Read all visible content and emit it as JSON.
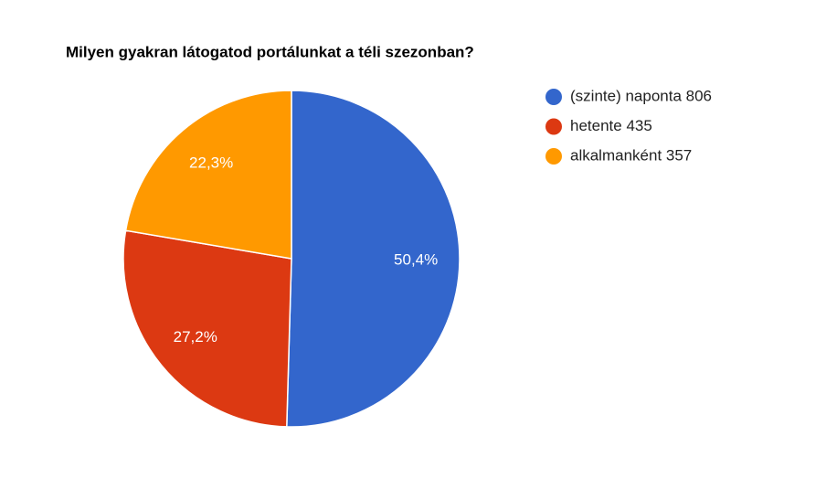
{
  "chart_data": {
    "type": "pie",
    "title": "Milyen gyakran látogatod portálunkat a téli szezonban?",
    "categories": [
      "(szinte) naponta 806",
      "hetente 435",
      "alkalmanként 357"
    ],
    "values": [
      50.4,
      27.2,
      22.3
    ],
    "value_labels": [
      "50,4%",
      "27,2%",
      "22,3%"
    ],
    "colors": [
      "#3366cc",
      "#dc3912",
      "#ff9900"
    ],
    "legend": "right"
  }
}
